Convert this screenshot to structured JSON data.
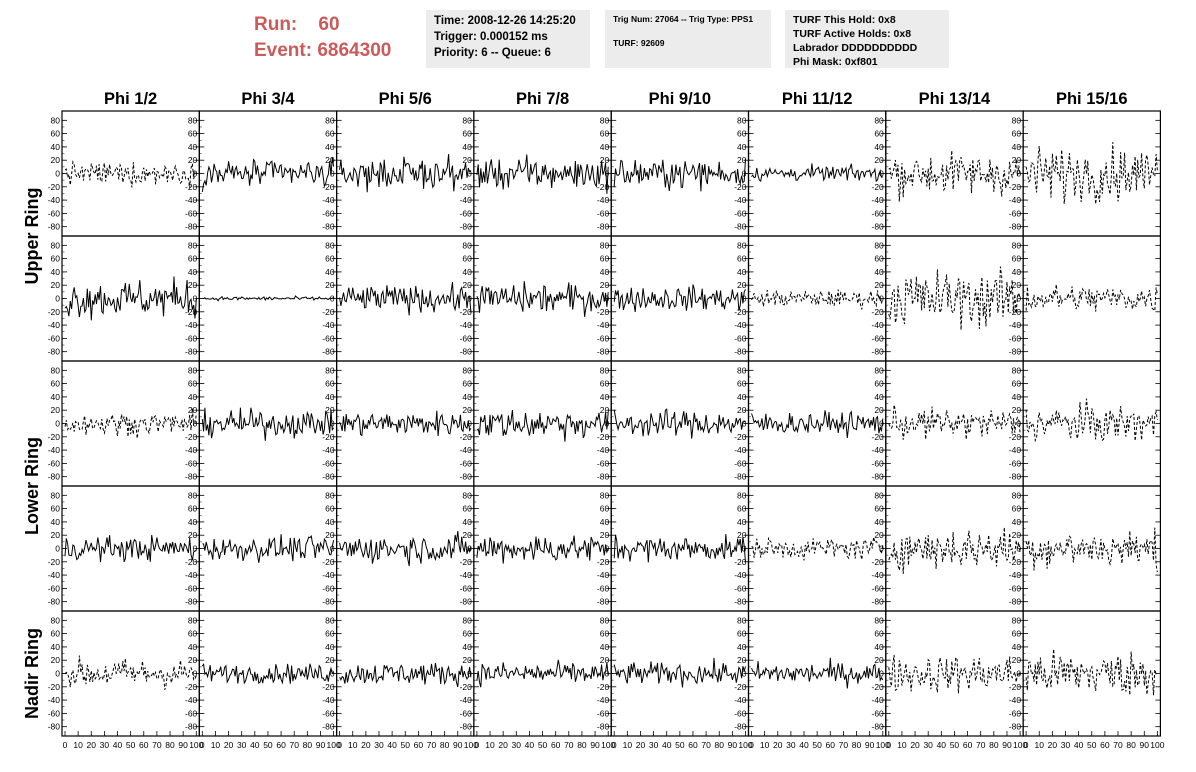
{
  "header": {
    "run_label": "Run:",
    "run_value": "60",
    "event_label": "Event:",
    "event_value": "6864300",
    "time_lines": [
      "Time: 2008-12-26 14:25:20",
      "Trigger: 0.000152 ms",
      "Priority: 6 -- Queue: 6"
    ],
    "trig_lines": [
      "Trig Num: 27064 -- Trig Type: PPS1",
      "",
      "TURF: 92609"
    ],
    "turf_lines": [
      "TURF This Hold: 0x8",
      "TURF Active Holds: 0x8",
      "Labrador DDDDDDDDDD",
      "Phi Mask: 0xf801"
    ]
  },
  "colors": {
    "header_red": "#cc5a5a",
    "info_bg": "#ececec",
    "trace": "#000000"
  },
  "chart_data": {
    "type": "line",
    "columns": [
      "Phi 1/2",
      "Phi 3/4",
      "Phi 5/6",
      "Phi 7/8",
      "Phi 9/10",
      "Phi 11/12",
      "Phi 13/14",
      "Phi 15/16"
    ],
    "rows": [
      "Upper Ring",
      "Lower Ring",
      "Nadir Ring"
    ],
    "y_ticks": [
      "80",
      "60",
      "40",
      "20",
      "0",
      "-20",
      "-40",
      "-60",
      "-80"
    ],
    "x_ticks": [
      "0",
      "10",
      "20",
      "30",
      "40",
      "50",
      "60",
      "70",
      "80",
      "90",
      "100"
    ],
    "ylim": [
      -85,
      85
    ],
    "xlim": [
      0,
      100
    ],
    "grid": false,
    "samples_per_trace": 100,
    "panels": [
      {
        "amp": 12,
        "dashed": true
      },
      {
        "amp": 14,
        "dashed": false
      },
      {
        "amp": 16,
        "dashed": false
      },
      {
        "amp": 17,
        "dashed": false
      },
      {
        "amp": 15,
        "dashed": false
      },
      {
        "amp": 8,
        "dashed": false
      },
      {
        "amp": 22,
        "dashed": true
      },
      {
        "amp": 28,
        "dashed": true
      },
      {
        "amp": 20,
        "dashed": false
      },
      {
        "amp": 2,
        "dashed": false
      },
      {
        "amp": 14,
        "dashed": false
      },
      {
        "amp": 16,
        "dashed": false
      },
      {
        "amp": 13,
        "dashed": false
      },
      {
        "amp": 9,
        "dashed": true
      },
      {
        "amp": 30,
        "dashed": true
      },
      {
        "amp": 15,
        "dashed": true
      },
      {
        "amp": 12,
        "dashed": true
      },
      {
        "amp": 14,
        "dashed": false
      },
      {
        "amp": 13,
        "dashed": false
      },
      {
        "amp": 16,
        "dashed": false
      },
      {
        "amp": 14,
        "dashed": false
      },
      {
        "amp": 12,
        "dashed": false
      },
      {
        "amp": 16,
        "dashed": true
      },
      {
        "amp": 20,
        "dashed": true
      },
      {
        "amp": 13,
        "dashed": false
      },
      {
        "amp": 13,
        "dashed": false
      },
      {
        "amp": 15,
        "dashed": false
      },
      {
        "amp": 15,
        "dashed": false
      },
      {
        "amp": 13,
        "dashed": false
      },
      {
        "amp": 12,
        "dashed": true
      },
      {
        "amp": 22,
        "dashed": true
      },
      {
        "amp": 20,
        "dashed": true
      },
      {
        "amp": 16,
        "dashed": true
      },
      {
        "amp": 10,
        "dashed": false
      },
      {
        "amp": 12,
        "dashed": false
      },
      {
        "amp": 12,
        "dashed": false
      },
      {
        "amp": 12,
        "dashed": false
      },
      {
        "amp": 12,
        "dashed": false
      },
      {
        "amp": 20,
        "dashed": true
      },
      {
        "amp": 24,
        "dashed": true
      }
    ]
  }
}
